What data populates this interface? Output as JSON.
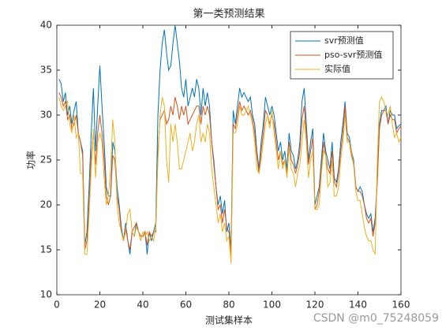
{
  "chart_data": {
    "type": "line",
    "title": "第一类预测结果",
    "xlabel": "测试集样本",
    "ylabel": "功率",
    "x": [
      1,
      2,
      3,
      4,
      5,
      6,
      7,
      8,
      9,
      10,
      11,
      12,
      13,
      14,
      15,
      16,
      17,
      18,
      19,
      20,
      21,
      22,
      23,
      24,
      25,
      26,
      27,
      28,
      29,
      30,
      31,
      32,
      33,
      34,
      35,
      36,
      37,
      38,
      39,
      40,
      41,
      42,
      43,
      44,
      45,
      46,
      47,
      48,
      49,
      50,
      51,
      52,
      53,
      54,
      55,
      56,
      57,
      58,
      59,
      60,
      61,
      62,
      63,
      64,
      65,
      66,
      67,
      68,
      69,
      70,
      71,
      72,
      73,
      74,
      75,
      76,
      77,
      78,
      79,
      80,
      81,
      82,
      83,
      84,
      85,
      86,
      87,
      88,
      89,
      90,
      91,
      92,
      93,
      94,
      95,
      96,
      97,
      98,
      99,
      100,
      101,
      102,
      103,
      104,
      105,
      106,
      107,
      108,
      109,
      110,
      111,
      112,
      113,
      114,
      115,
      116,
      117,
      118,
      119,
      120,
      121,
      122,
      123,
      124,
      125,
      126,
      127,
      128,
      129,
      130,
      131,
      132,
      133,
      134,
      135,
      136,
      137,
      138,
      139,
      140,
      141,
      142,
      143,
      144,
      145,
      146,
      147,
      148,
      149,
      150,
      151,
      152,
      153,
      154,
      155,
      156,
      157,
      158,
      159,
      160
    ],
    "series": [
      {
        "name": "svr预测值",
        "color": "#0072BD",
        "values": [
          34,
          33.5,
          31.5,
          32.5,
          30,
          31,
          29,
          30.5,
          31.5,
          28,
          27,
          26,
          15.5,
          17,
          22,
          28,
          33,
          26,
          31,
          35.5,
          31,
          27,
          22,
          21,
          21,
          27,
          26,
          22,
          20,
          17.5,
          16,
          18,
          16,
          14.5,
          17,
          16.5,
          18,
          17,
          16.5,
          16.5,
          17,
          14.5,
          17,
          16,
          17,
          18,
          30,
          35,
          38,
          39.5,
          37,
          35,
          35.5,
          38,
          40,
          38,
          36,
          33,
          32,
          34,
          31,
          32,
          33,
          32,
          34,
          33,
          30,
          33,
          31,
          32.5,
          31,
          27,
          25,
          22,
          20,
          21,
          19,
          20.5,
          17,
          18,
          15,
          30.5,
          29,
          31,
          33,
          32,
          32.5,
          32,
          31.5,
          32,
          30,
          29,
          26,
          24,
          27,
          29,
          32,
          31,
          30,
          31,
          30,
          28,
          26,
          27,
          25,
          26,
          24,
          28,
          26,
          25.5,
          24,
          25,
          27,
          31.5,
          33,
          29,
          25,
          27,
          28.5,
          20,
          21,
          22,
          25,
          28,
          26,
          25,
          24,
          27,
          23,
          22.5,
          24,
          27,
          29,
          31.5,
          28,
          27.5,
          26,
          25,
          22,
          21.5,
          22,
          21.5,
          20,
          19,
          18.5,
          19,
          17,
          18.5,
          23,
          29,
          30.5,
          30.5,
          31,
          29,
          30.5,
          30,
          30,
          28.5,
          28.8,
          29
        ]
      },
      {
        "name": "pso-svr预测值",
        "color": "#D95319",
        "values": [
          32.5,
          32,
          31,
          31.5,
          29.5,
          30,
          28.5,
          29,
          30,
          28,
          27,
          25.5,
          15,
          16,
          20,
          25.5,
          28,
          24.5,
          28,
          30,
          28,
          25,
          21,
          20,
          21,
          25.5,
          25,
          21,
          19.5,
          17,
          16,
          17.5,
          16,
          15,
          17,
          17.5,
          18,
          17,
          16.5,
          16.5,
          17,
          15.5,
          17,
          16.5,
          17,
          17,
          26,
          29.5,
          30,
          30.5,
          29,
          29.5,
          31,
          30,
          32,
          31,
          29.5,
          31,
          30,
          31,
          29,
          29.5,
          30,
          30.5,
          31,
          31,
          29,
          31,
          30,
          31,
          30,
          27,
          24.5,
          22,
          19.5,
          20,
          18,
          19.5,
          17.5,
          17,
          14.5,
          29,
          28.5,
          30,
          31.5,
          30.5,
          31,
          30.5,
          30,
          30.5,
          29.5,
          28,
          25.5,
          23.5,
          26,
          28,
          30.5,
          30,
          29,
          30,
          29,
          27,
          25,
          26,
          24.5,
          25,
          23.5,
          27,
          25,
          24.5,
          23.5,
          24.5,
          26,
          29.5,
          31,
          28,
          24.5,
          26,
          27.5,
          19.5,
          20,
          21.5,
          24,
          27,
          25.5,
          24,
          23.5,
          26,
          22.5,
          22,
          23.5,
          26,
          28,
          31,
          27.5,
          27,
          25.5,
          24.5,
          22,
          21.5,
          21.5,
          21,
          20,
          18.5,
          18,
          18.5,
          16.5,
          18,
          22.5,
          28.5,
          30,
          30.5,
          30.5,
          29,
          30,
          29.5,
          29.5,
          28,
          28.5,
          28.8
        ]
      },
      {
        "name": "实际值",
        "color": "#EDB120",
        "values": [
          32,
          31,
          30.5,
          31,
          31.5,
          29,
          28,
          30,
          27.5,
          28,
          23.5,
          23.5,
          14.5,
          14.5,
          19,
          24,
          28.5,
          23,
          27,
          28,
          27,
          23,
          20,
          21,
          24,
          29.5,
          27,
          20,
          18,
          17,
          16,
          17,
          19,
          19.5,
          17,
          16.5,
          17.5,
          17,
          16,
          17,
          16.5,
          17,
          16,
          16.5,
          16,
          17.5,
          25,
          30,
          32,
          31,
          25,
          22.5,
          29,
          27,
          29,
          27,
          24,
          24,
          25,
          26,
          27,
          28,
          26,
          27,
          29,
          30,
          27,
          28,
          27,
          29,
          28,
          24,
          22,
          20,
          18,
          19,
          17,
          18,
          16,
          16.5,
          13.5,
          28,
          28,
          29,
          31,
          30,
          30,
          30.5,
          31,
          30,
          29,
          27,
          24,
          23.5,
          25,
          27,
          29,
          30,
          28.5,
          30.5,
          28,
          26,
          24,
          26,
          24,
          25,
          23,
          26.5,
          24,
          23.5,
          22,
          23.5,
          24.5,
          27,
          29.5,
          27,
          23,
          25,
          26,
          19.5,
          19.5,
          20,
          23.5,
          26,
          25.5,
          22,
          22.5,
          25,
          21,
          21,
          22,
          25,
          27,
          30,
          27,
          27,
          26,
          24.5,
          21.5,
          20.5,
          20.5,
          19,
          17.5,
          16.5,
          16,
          16,
          15,
          14.5,
          25,
          31.5,
          32,
          31.5,
          30.5,
          30,
          31,
          29,
          27.5,
          28,
          27,
          27.5
        ]
      }
    ],
    "xlim": [
      0,
      160
    ],
    "xticks": [
      0,
      20,
      40,
      60,
      80,
      100,
      120,
      140,
      160
    ],
    "ylim": [
      10,
      40
    ],
    "yticks": [
      10,
      15,
      20,
      25,
      30,
      35,
      40
    ],
    "grid": false,
    "legend": "upper right"
  },
  "watermark": "CSDN @m0_75248059"
}
